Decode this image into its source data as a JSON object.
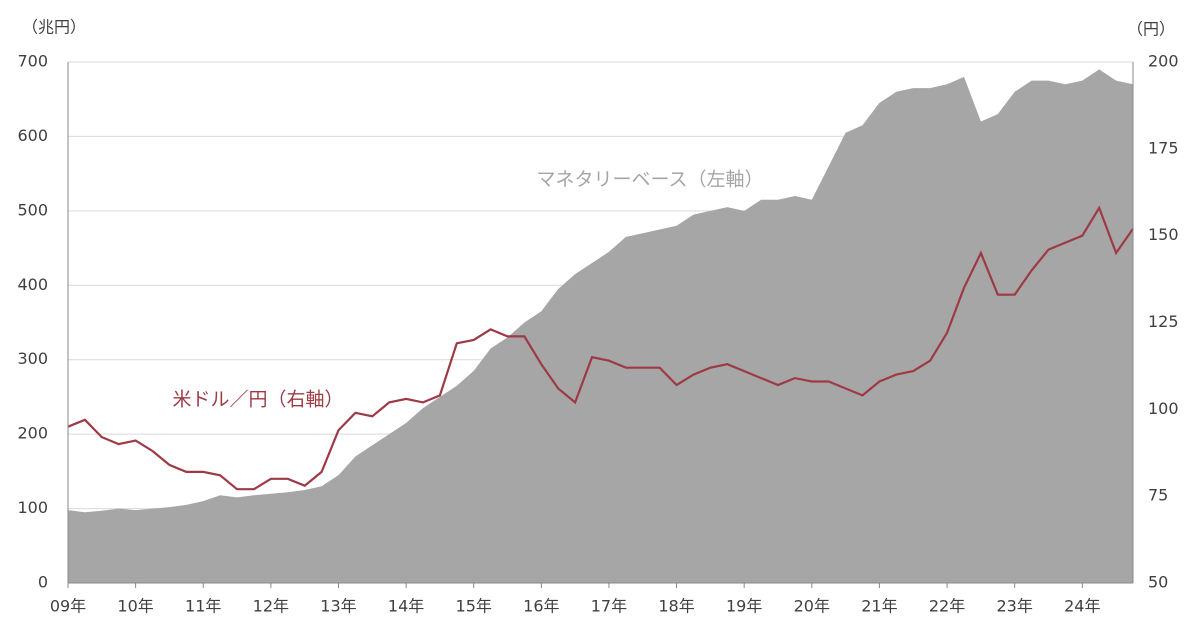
{
  "chart_data": {
    "type": "area_line",
    "y_label": "（兆円）",
    "y2_label": "（円）",
    "annotations": [
      "マネタリーベース（左軸）",
      "米ドル／円（右軸）"
    ],
    "categories": [
      "09年",
      null,
      null,
      null,
      "10年",
      null,
      null,
      null,
      "11年",
      null,
      null,
      null,
      "12年",
      null,
      null,
      null,
      "13年",
      null,
      null,
      null,
      "14年",
      null,
      null,
      null,
      "15年",
      null,
      null,
      null,
      "16年",
      null,
      null,
      null,
      "17年",
      null,
      null,
      null,
      "18年",
      null,
      null,
      null,
      "19年",
      null,
      null,
      null,
      "20年",
      null,
      null,
      null,
      "21年",
      null,
      null,
      null,
      "22年",
      null,
      null,
      null,
      "23年",
      null,
      null,
      null,
      "24年",
      null,
      null,
      null
    ],
    "series": [
      {
        "name": "マネタリーベース（左軸）",
        "color": "#a6a6a6",
        "kind": "area",
        "axis": "y",
        "values": [
          98,
          95,
          97,
          100,
          98,
          100,
          102,
          105,
          110,
          118,
          115,
          118,
          120,
          122,
          125,
          130,
          145,
          170,
          185,
          200,
          215,
          235,
          250,
          265,
          285,
          315,
          330,
          350,
          365,
          395,
          415,
          430,
          445,
          465,
          470,
          475,
          480,
          495,
          500,
          505,
          500,
          515,
          515,
          520,
          515,
          560,
          605,
          615,
          645,
          660,
          665,
          665,
          670,
          680,
          620,
          630,
          660,
          675,
          675,
          670,
          675,
          690,
          675,
          670
        ]
      },
      {
        "name": "米ドル／円（右軸）",
        "color": "#9e3a45",
        "kind": "line",
        "axis": "y2",
        "values": [
          95,
          97,
          92,
          90,
          91,
          88,
          84,
          82,
          82,
          81,
          77,
          77,
          80,
          80,
          78,
          82,
          94,
          99,
          98,
          102,
          103,
          102,
          104,
          119,
          120,
          123,
          121,
          121,
          113,
          106,
          102,
          115,
          114,
          112,
          112,
          112,
          107,
          110,
          112,
          113,
          111,
          109,
          107,
          109,
          108,
          108,
          106,
          104,
          108,
          110,
          111,
          114,
          122,
          135,
          145,
          133,
          133,
          140,
          146,
          148,
          150,
          158,
          145,
          152
        ]
      }
    ],
    "ylim": [
      0,
      700
    ],
    "yticks": [
      0,
      100,
      200,
      300,
      400,
      500,
      600,
      700
    ],
    "y2lim": [
      50,
      200
    ],
    "y2ticks": [
      50,
      75,
      100,
      125,
      150,
      175,
      200
    ],
    "grid": true
  }
}
